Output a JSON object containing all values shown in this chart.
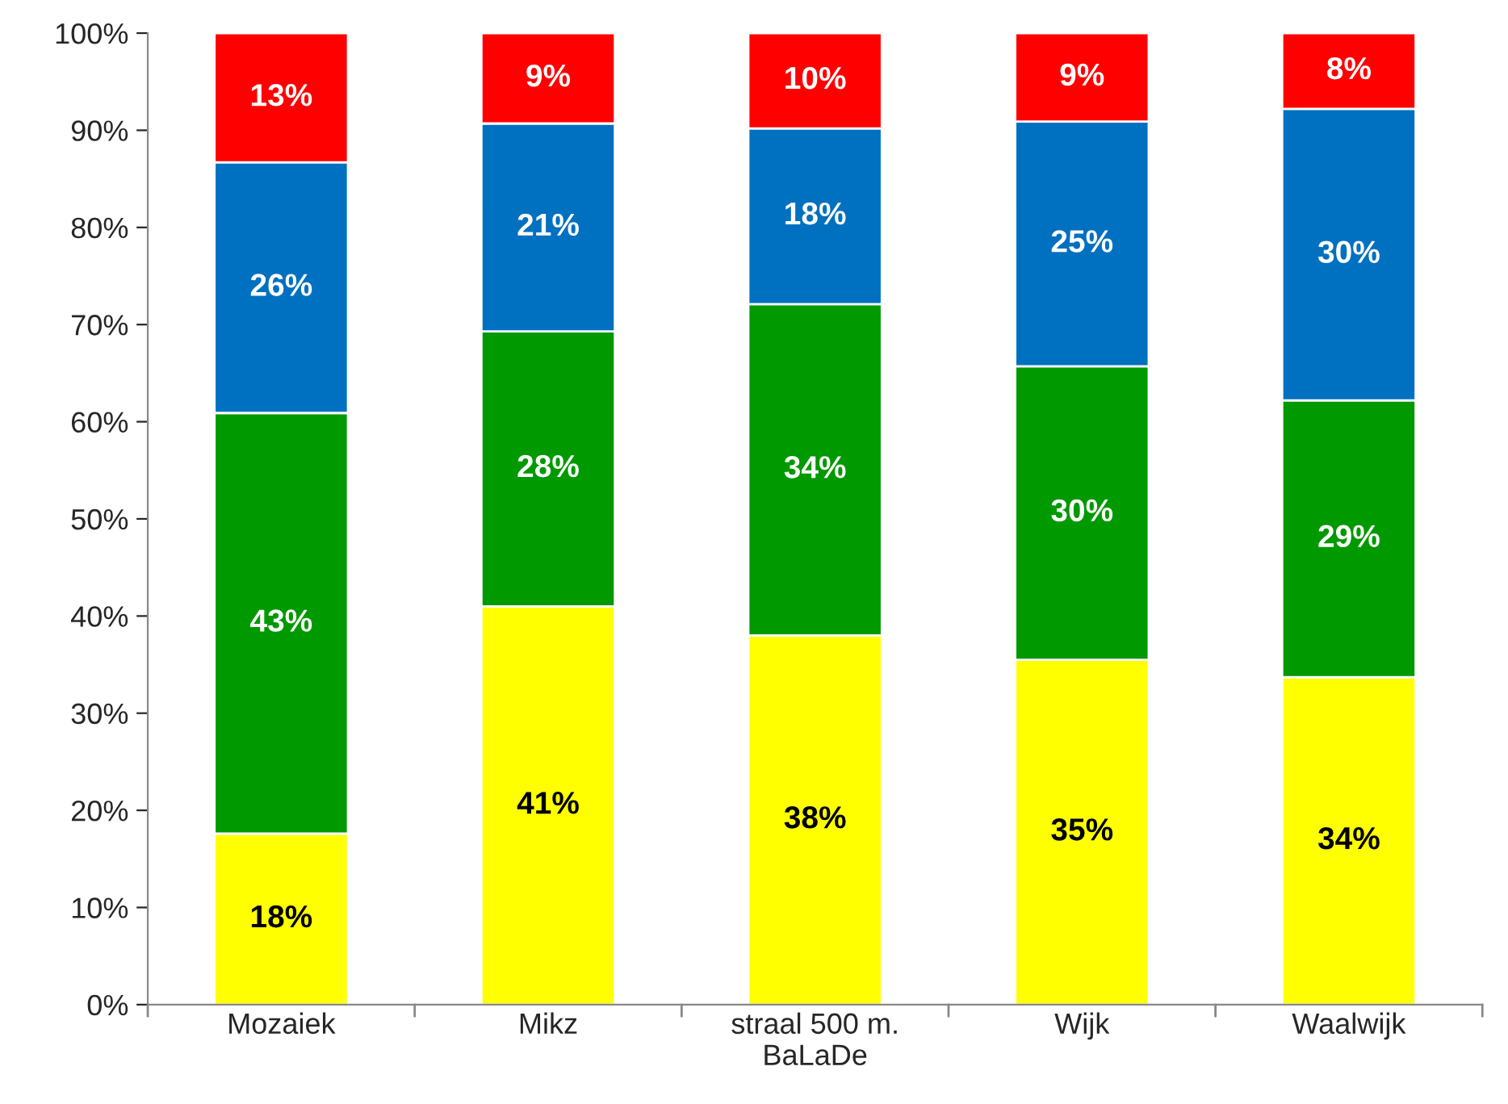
{
  "chart_data": {
    "type": "bar",
    "stacked": true,
    "categories": [
      "Mozaiek",
      "Mikz",
      "straal 500 m.\nBaLaDe",
      "Wijk",
      "Waalwijk"
    ],
    "series": [
      {
        "color": "#ffff00",
        "values": [
          17.6,
          41.0,
          38.0,
          35.5,
          33.7
        ],
        "value_labels": [
          "18%",
          "41%",
          "38%",
          "35%",
          "34%"
        ]
      },
      {
        "color": "#009900",
        "values": [
          43.3,
          28.3,
          34.1,
          30.2,
          28.5
        ],
        "value_labels": [
          "43%",
          "28%",
          "34%",
          "30%",
          "29%"
        ]
      },
      {
        "color": "#0070c0",
        "values": [
          25.8,
          21.4,
          18.1,
          25.2,
          30.0
        ],
        "value_labels": [
          "26%",
          "21%",
          "18%",
          "25%",
          "30%"
        ]
      },
      {
        "color": "#ff0000",
        "values": [
          13.3,
          9.3,
          9.8,
          9.1,
          7.8
        ],
        "value_labels": [
          "13%",
          "9%",
          "10%",
          "9%",
          "8%"
        ]
      }
    ],
    "ylim": [
      0,
      100
    ],
    "yticks": [
      {
        "value": 0,
        "label": "0%"
      },
      {
        "value": 10,
        "label": "10%"
      },
      {
        "value": 20,
        "label": "20%"
      },
      {
        "value": 30,
        "label": "30%"
      },
      {
        "value": 40,
        "label": "40%"
      },
      {
        "value": 50,
        "label": "50%"
      },
      {
        "value": 60,
        "label": "60%"
      },
      {
        "value": 70,
        "label": "70%"
      },
      {
        "value": 80,
        "label": "80%"
      },
      {
        "value": 90,
        "label": "90%"
      },
      {
        "value": 100,
        "label": "100%"
      }
    ],
    "grid": false,
    "legend": false
  }
}
